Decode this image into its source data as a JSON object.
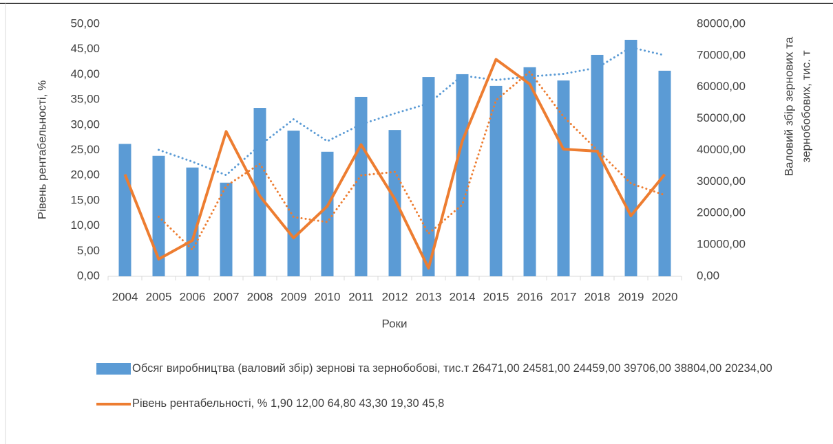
{
  "chart_data": {
    "type": "bar",
    "xlabel": "Роки",
    "ylabel": "Рівень рентабельності, %",
    "y2label": [
      "Валовий збір зернових та",
      "зернобобових, тис. т"
    ],
    "categories": [
      "2004",
      "2005",
      "2006",
      "2007",
      "2008",
      "2009",
      "2010",
      "2011",
      "2012",
      "2013",
      "2014",
      "2015",
      "2016",
      "2017",
      "2018",
      "2019",
      "2020"
    ],
    "ylim": [
      0,
      50
    ],
    "yticks": [
      {
        "value": 0,
        "label": "0,00"
      },
      {
        "value": 5,
        "label": "5,00"
      },
      {
        "value": 10,
        "label": "10,00"
      },
      {
        "value": 15,
        "label": "15,00"
      },
      {
        "value": 20,
        "label": "20,00"
      },
      {
        "value": 25,
        "label": "25,00"
      },
      {
        "value": 30,
        "label": "30,00"
      },
      {
        "value": 35,
        "label": "35,00"
      },
      {
        "value": 40,
        "label": "40,00"
      },
      {
        "value": 45,
        "label": "45,00"
      },
      {
        "value": 50,
        "label": "50,00"
      }
    ],
    "y2lim": [
      0,
      80000
    ],
    "y2ticks": [
      {
        "value": 0,
        "label": "0,00"
      },
      {
        "value": 10000,
        "label": "10000,00"
      },
      {
        "value": 20000,
        "label": "20000,00"
      },
      {
        "value": 30000,
        "label": "30000,00"
      },
      {
        "value": 40000,
        "label": "40000,00"
      },
      {
        "value": 50000,
        "label": "50000,00"
      },
      {
        "value": 60000,
        "label": "60000,00"
      },
      {
        "value": 70000,
        "label": "70000,00"
      },
      {
        "value": 80000,
        "label": "80000,00"
      }
    ],
    "series": [
      {
        "name": "Обсяг виробництва (валовий збір) зернові та зернобобові, тис.т 26471,00 24581,00 24459,00 39706,00 38804,00 20234,00",
        "type": "bar",
        "axis": "y2",
        "color": "#5b9bd5",
        "values": [
          42000,
          38200,
          34500,
          29700,
          53400,
          46200,
          39500,
          56900,
          46400,
          63200,
          64100,
          60400,
          66300,
          62100,
          70200,
          75000,
          65200
        ]
      },
      {
        "name": "Рівень рентабельності, % 1,90 12,00 64,80 43,30 19,30  45,8",
        "type": "line",
        "color": "#ed7d31",
        "values": [
          20.2,
          3.4,
          7.1,
          28.7,
          15.9,
          7.6,
          13.9,
          26.1,
          15.3,
          1.6,
          26.8,
          43.0,
          38.1,
          25.2,
          24.8,
          12.0,
          20.2
        ]
      },
      {
        "type": "trend",
        "axis": "y2",
        "color": "#5b9bd5",
        "values": [
          null,
          40100,
          36350,
          32100,
          41550,
          49800,
          42850,
          48200,
          51650,
          54800,
          63650,
          62250,
          63350,
          64200,
          66150,
          72600,
          70100
        ]
      },
      {
        "type": "trend",
        "color": "#ed7d31",
        "values": [
          null,
          11.8,
          5.25,
          17.9,
          22.3,
          11.75,
          10.75,
          20.0,
          20.7,
          8.45,
          14.2,
          34.9,
          40.55,
          31.65,
          25.0,
          18.4,
          16.1
        ]
      }
    ]
  }
}
